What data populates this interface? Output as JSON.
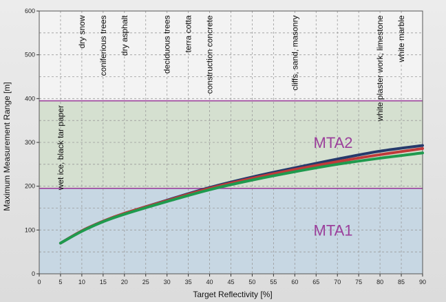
{
  "chart_data": {
    "type": "line",
    "xlabel": "Target Reflectivity [%]",
    "ylabel": "Maximum Measurement Range [m]",
    "xlim": [
      0,
      90
    ],
    "ylim": [
      0,
      600
    ],
    "x_ticks": [
      "0",
      "5",
      "10",
      "15",
      "20",
      "25",
      "30",
      "35",
      "40",
      "45",
      "50",
      "55",
      "60",
      "65",
      "70",
      "75",
      "80",
      "85",
      "90"
    ],
    "y_ticks": [
      "0",
      "100",
      "200",
      "300",
      "400",
      "500",
      "600"
    ],
    "grid": true,
    "zones": [
      {
        "name": "MTA1",
        "from": 0,
        "to": 195,
        "color": "#c7d7e3",
        "label_x": 69,
        "label_y": 100
      },
      {
        "name": "MTA2",
        "from": 195,
        "to": 395,
        "color": "#d5e0d0",
        "label_x": 69,
        "label_y": 300
      }
    ],
    "zone_line_color": "#9b3f9b",
    "label_color": "#9b3f9b",
    "series": [
      {
        "color": "#263a6b",
        "x": [
          5,
          10,
          15,
          20,
          30,
          40,
          50,
          60,
          70,
          80,
          90
        ],
        "y": [
          70,
          98,
          120,
          138,
          168,
          197,
          221,
          242,
          262,
          280,
          293
        ]
      },
      {
        "color": "#c03a3a",
        "x": [
          5,
          10,
          15,
          20,
          30,
          40,
          50,
          60,
          70,
          80,
          90
        ],
        "y": [
          70,
          98,
          120,
          138,
          167,
          195,
          218,
          238,
          256,
          272,
          286
        ]
      },
      {
        "color": "#1f9a4e",
        "x": [
          5,
          10,
          15,
          20,
          30,
          40,
          50,
          60,
          70,
          80,
          90
        ],
        "y": [
          70,
          97,
          119,
          136,
          165,
          192,
          214,
          233,
          250,
          264,
          276
        ]
      }
    ],
    "annotations": [
      {
        "text": "wet ice, black tar paper",
        "x": 5,
        "y": 385
      },
      {
        "text": "dry snow",
        "x": 10,
        "y": 590
      },
      {
        "text": "coniferious trees",
        "x": 15,
        "y": 590
      },
      {
        "text": "dry asphalt",
        "x": 20,
        "y": 590
      },
      {
        "text": "deciduous trees",
        "x": 30,
        "y": 590
      },
      {
        "text": "terra cotta",
        "x": 35,
        "y": 590
      },
      {
        "text": "construction concrete",
        "x": 40,
        "y": 590
      },
      {
        "text": "cliffs, sand, masonry",
        "x": 60,
        "y": 590
      },
      {
        "text": "white plaster work, limestone",
        "x": 80,
        "y": 590
      },
      {
        "text": "white marble",
        "x": 85,
        "y": 590
      }
    ]
  }
}
